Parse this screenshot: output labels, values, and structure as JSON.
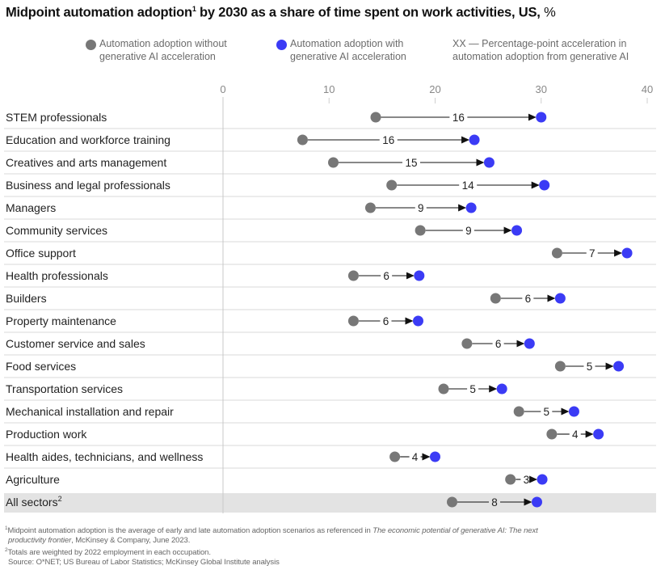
{
  "title": {
    "main": "Midpoint automation adoption",
    "sup": "1",
    "rest": " by 2030 as a share of time spent on work activities, US, ",
    "unit": "%"
  },
  "legend": [
    {
      "label_line1": "Automation adoption without",
      "label_line2": "generative AI acceleration",
      "color": "#777777",
      "marker": "circle"
    },
    {
      "label_line1": "Automation adoption with",
      "label_line2": "generative AI acceleration",
      "color": "#3b3bf5",
      "marker": "circle"
    },
    {
      "label_line1": "XX — Percentage-point acceleration in",
      "label_line2": "automation adoption from generative AI",
      "marker": "none"
    }
  ],
  "colors": {
    "without": "#777777",
    "with": "#3b3bf5",
    "arrow": "#111111",
    "highlight_row": "#e3e3e3",
    "grid": "#d9d9d9"
  },
  "chart_data": {
    "type": "dumbbell",
    "title": "Midpoint automation adoption by 2030 as a share of time spent on work activities, US, %",
    "xlabel": "",
    "ylabel": "",
    "xlim": [
      0,
      40
    ],
    "xticks": [
      0,
      10,
      20,
      30,
      40
    ],
    "xtick_labels": [
      "0",
      "10",
      "20",
      "30",
      "40"
    ],
    "grid": false,
    "legend_placement": "top",
    "series": [
      {
        "name": "Automation adoption without generative AI acceleration",
        "key": "without"
      },
      {
        "name": "Automation adoption with generative AI acceleration",
        "key": "with"
      }
    ],
    "rows": [
      {
        "category": "STEM professionals",
        "without": 14.4,
        "with": 30.0,
        "delta": "16"
      },
      {
        "category": "Education and workforce training",
        "without": 7.5,
        "with": 23.7,
        "delta": "16"
      },
      {
        "category": "Creatives and arts management",
        "without": 10.4,
        "with": 25.1,
        "delta": "15"
      },
      {
        "category": "Business and legal professionals",
        "without": 15.9,
        "with": 30.3,
        "delta": "14"
      },
      {
        "category": "Managers",
        "without": 13.9,
        "with": 23.4,
        "delta": "9"
      },
      {
        "category": "Community services",
        "without": 18.6,
        "with": 27.7,
        "delta": "9"
      },
      {
        "category": "Office support",
        "without": 31.5,
        "with": 38.1,
        "delta": "7"
      },
      {
        "category": "Health professionals",
        "without": 12.3,
        "with": 18.5,
        "delta": "6"
      },
      {
        "category": "Builders",
        "without": 25.7,
        "with": 31.8,
        "delta": "6"
      },
      {
        "category": "Property maintenance",
        "without": 12.3,
        "with": 18.4,
        "delta": "6"
      },
      {
        "category": "Customer service and sales",
        "without": 23.0,
        "with": 28.9,
        "delta": "6"
      },
      {
        "category": "Food services",
        "without": 31.8,
        "with": 37.3,
        "delta": "5"
      },
      {
        "category": "Transportation services",
        "without": 20.8,
        "with": 26.3,
        "delta": "5"
      },
      {
        "category": "Mechanical installation and repair",
        "without": 27.9,
        "with": 33.1,
        "delta": "5"
      },
      {
        "category": "Production work",
        "without": 31.0,
        "with": 35.4,
        "delta": "4"
      },
      {
        "category": "Health aides, technicians, and wellness",
        "without": 16.2,
        "with": 20.0,
        "delta": "4"
      },
      {
        "category": "Agriculture",
        "without": 27.1,
        "with": 30.1,
        "delta": "3"
      },
      {
        "category": "All sectors",
        "category_sup": "2",
        "without": 21.6,
        "with": 29.6,
        "delta": "8",
        "highlight": true
      }
    ]
  },
  "footnotes": {
    "note1_sup": "1",
    "note1_text_a": "Midpoint automation adoption is the average of early and late automation adoption scenarios as referenced in ",
    "note1_italic_a": "The economic potential of generative AI: The next",
    "note1_italic_b": "productivity frontier",
    "note1_text_b": ", McKinsey & Company, June 2023.",
    "note2_sup": "2",
    "note2_text": "Totals are weighted by 2022 employment in each occupation.",
    "source": "Source: O*NET; US Bureau of Labor Statistics; McKinsey Global Institute analysis"
  }
}
